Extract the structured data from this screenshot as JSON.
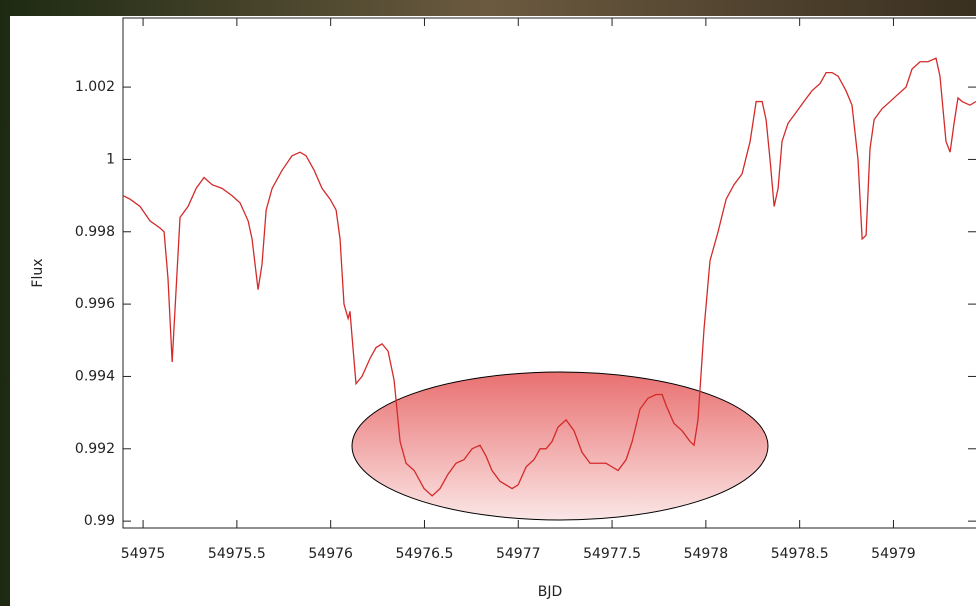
{
  "chart_data": {
    "type": "line",
    "x_label": "BJD",
    "y_label": "Flux",
    "xlim": [
      54974.893,
      54979.44
    ],
    "ylim": [
      0.98981,
      1.00391
    ],
    "xticks": [
      54975,
      54975.5,
      54976,
      54976.5,
      54977,
      54977.5,
      54978,
      54978.5,
      54979
    ],
    "yticks": [
      0.99,
      0.992,
      0.994,
      0.996,
      0.998,
      1,
      1.002
    ],
    "x": [
      54974.893,
      54974.931,
      54974.984,
      54975.037,
      54975.091,
      54975.112,
      54975.133,
      54975.155,
      54975.176,
      54975.197,
      54975.24,
      54975.283,
      54975.325,
      54975.368,
      54975.421,
      54975.474,
      54975.517,
      54975.56,
      54975.581,
      54975.613,
      54975.634,
      54975.656,
      54975.688,
      54975.741,
      54975.794,
      54975.837,
      54975.869,
      54975.912,
      54975.954,
      54975.997,
      54976.029,
      54976.05,
      54976.071,
      54976.093,
      54976.103,
      54976.114,
      54976.135,
      54976.167,
      54976.21,
      54976.242,
      54976.274,
      54976.306,
      54976.338,
      54976.37,
      54976.402,
      54976.445,
      54976.498,
      54976.541,
      54976.583,
      54976.626,
      54976.668,
      54976.711,
      54976.754,
      54976.796,
      54976.828,
      54976.86,
      54976.903,
      54976.935,
      54976.967,
      54976.999,
      54977.042,
      54977.084,
      54977.116,
      54977.148,
      54977.18,
      54977.212,
      54977.255,
      54977.297,
      54977.34,
      54977.383,
      54977.425,
      54977.468,
      54977.5,
      54977.532,
      54977.575,
      54977.607,
      54977.649,
      54977.692,
      54977.735,
      54977.767,
      54977.788,
      54977.83,
      54977.873,
      54977.916,
      54977.937,
      54977.958,
      54977.99,
      54978.022,
      54978.065,
      54978.108,
      54978.15,
      54978.193,
      54978.236,
      54978.268,
      54978.3,
      54978.321,
      54978.342,
      54978.364,
      54978.385,
      54978.406,
      54978.438,
      54978.481,
      54978.523,
      54978.566,
      54978.609,
      54978.641,
      54978.673,
      54978.705,
      54978.747,
      54978.779,
      54978.811,
      54978.833,
      54978.854,
      54978.875,
      54978.897,
      54978.939,
      54978.982,
      54979.024,
      54979.067,
      54979.099,
      54979.142,
      54979.184,
      54979.227,
      54979.248,
      54979.28,
      54979.302,
      54979.323,
      54979.344,
      54979.366,
      54979.408,
      54979.44
    ],
    "series": [
      {
        "name": "Flux",
        "color": "#d42a2a",
        "values": [
          0.999,
          0.9989,
          0.9987,
          0.9983,
          0.9981,
          0.998,
          0.9967,
          0.9944,
          0.9964,
          0.9984,
          0.9987,
          0.9992,
          0.9995,
          0.9993,
          0.9992,
          0.999,
          0.9988,
          0.9983,
          0.9978,
          0.9964,
          0.9971,
          0.9986,
          0.9992,
          0.9997,
          1.0001,
          1.0002,
          1.0001,
          0.9997,
          0.9992,
          0.9989,
          0.9986,
          0.9978,
          0.996,
          0.9956,
          0.9958,
          0.9951,
          0.9938,
          0.994,
          0.9945,
          0.9948,
          0.9949,
          0.9947,
          0.9939,
          0.9922,
          0.9916,
          0.9914,
          0.9909,
          0.9907,
          0.9909,
          0.9913,
          0.9916,
          0.9917,
          0.992,
          0.9921,
          0.9918,
          0.9914,
          0.9911,
          0.991,
          0.9909,
          0.991,
          0.9915,
          0.9917,
          0.992,
          0.992,
          0.9922,
          0.9926,
          0.9928,
          0.9925,
          0.9919,
          0.9916,
          0.9916,
          0.9916,
          0.9915,
          0.9914,
          0.9917,
          0.9922,
          0.9931,
          0.9934,
          0.9935,
          0.9935,
          0.9932,
          0.9927,
          0.9925,
          0.9922,
          0.9921,
          0.9928,
          0.9953,
          0.9972,
          0.998,
          0.9989,
          0.9993,
          0.9996,
          1.0005,
          1.0016,
          1.0016,
          1.0011,
          1.0,
          0.9987,
          0.9992,
          1.0005,
          1.001,
          1.0013,
          1.0016,
          1.0019,
          1.0021,
          1.0024,
          1.0024,
          1.0023,
          1.0019,
          1.0015,
          1.0,
          0.9978,
          0.9979,
          1.0003,
          1.0011,
          1.0014,
          1.0016,
          1.0018,
          1.002,
          1.0025,
          1.0027,
          1.0027,
          1.0028,
          1.0023,
          1.0005,
          1.0002,
          1.001,
          1.0017,
          1.0016,
          1.0015,
          1.0016
        ]
      }
    ]
  }
}
